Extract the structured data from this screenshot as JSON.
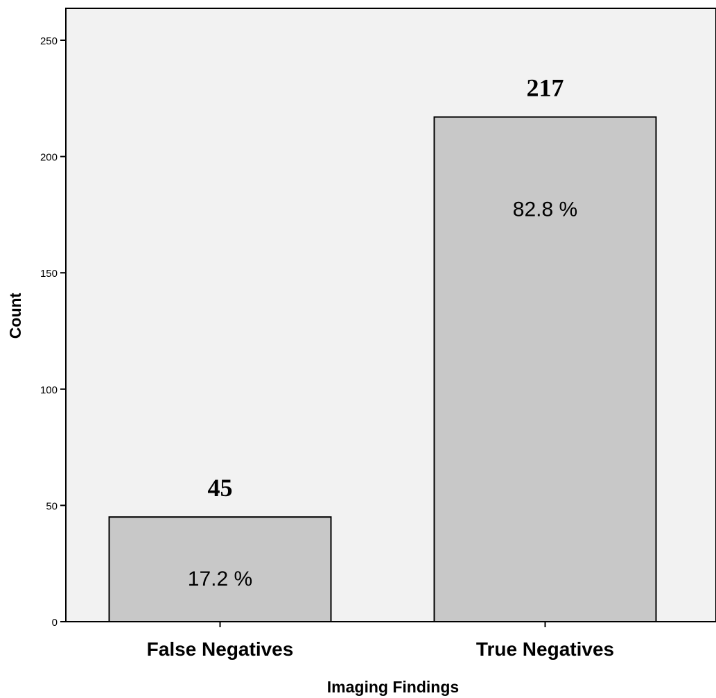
{
  "chart_data": {
    "type": "bar",
    "categories": [
      "False Negatives",
      "True Negatives"
    ],
    "values": [
      45,
      217
    ],
    "value_labels": [
      "45",
      "217"
    ],
    "percent_labels": [
      "17.2 %",
      "82.8 %"
    ],
    "title": "",
    "xlabel": "Imaging Findings",
    "ylabel": "Count",
    "ylim": [
      0,
      250
    ],
    "yticks": [
      0,
      50,
      100,
      150,
      200,
      250
    ],
    "ytick_labels": [
      "0",
      "50",
      "100",
      "150",
      "200",
      "250"
    ],
    "grid": false,
    "legend": "none",
    "colors": {
      "plot_background": "#f2f2f2",
      "bar_fill": "#c8c8c8",
      "bar_stroke": "#000000"
    }
  }
}
